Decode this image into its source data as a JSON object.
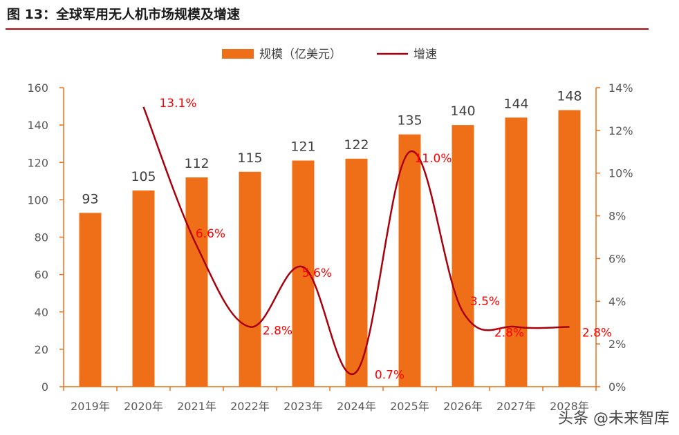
{
  "figure": {
    "title": "图 13：全球军用无人机市场规模及增速",
    "watermark": "头条 @未来智库"
  },
  "colors": {
    "bar": "#ee6f17",
    "line": "#a8000c",
    "growth_label": "#ff0000",
    "rule": "#c00000",
    "axis": "#ee6f17"
  },
  "chart_data": {
    "type": "bar+line",
    "title": "全球军用无人机市场规模及增速",
    "categories": [
      "2019年",
      "2020年",
      "2021年",
      "2022年",
      "2023年",
      "2024年",
      "2025年",
      "2026年",
      "2027年",
      "2028年"
    ],
    "series": [
      {
        "name": "规模（亿美元）",
        "type": "bar",
        "axis": "left",
        "values": [
          93,
          105,
          112,
          115,
          121,
          122,
          135,
          140,
          144,
          148
        ],
        "labels": [
          "93",
          "105",
          "112",
          "115",
          "121",
          "122",
          "135",
          "140",
          "144",
          "148"
        ]
      },
      {
        "name": "增速",
        "type": "line",
        "axis": "right",
        "values": [
          null,
          13.1,
          6.6,
          2.8,
          5.6,
          0.7,
          11.0,
          3.5,
          2.8,
          2.8
        ],
        "labels": [
          "",
          "13.1%",
          "6.6%",
          "2.8%",
          "5.6%",
          "0.7%",
          "11.0%",
          "3.5%",
          "2.8%",
          "2.8%"
        ]
      }
    ],
    "y_left": {
      "min": 0,
      "max": 160,
      "ticks": [
        "0",
        "20",
        "40",
        "60",
        "80",
        "100",
        "120",
        "140",
        "160"
      ]
    },
    "y_right": {
      "min": 0,
      "max": 14,
      "ticks": [
        "0%",
        "2%",
        "4%",
        "6%",
        "8%",
        "10%",
        "12%",
        "14%"
      ]
    },
    "legend": {
      "position": "top-center",
      "bar_label": "规模（亿美元）",
      "line_label": "增速"
    },
    "grid": false
  }
}
